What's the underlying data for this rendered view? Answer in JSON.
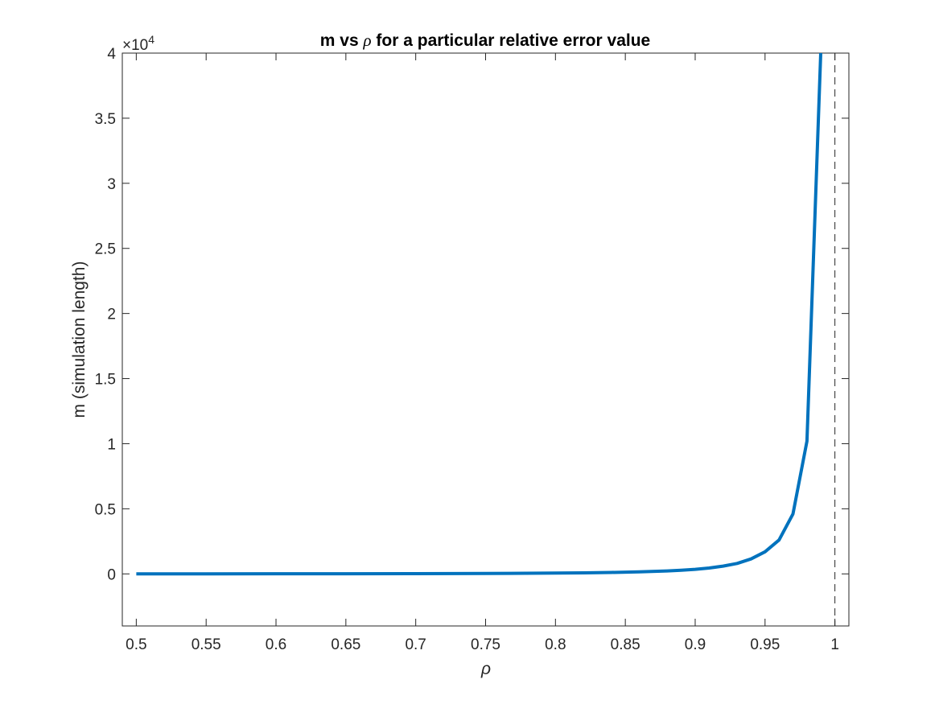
{
  "chart_data": {
    "type": "line",
    "title_prefix": "m vs ",
    "title_symbol": "ρ",
    "title_suffix": " for a particular relative error value",
    "xlabel": "ρ",
    "ylabel": "m (simulation length)",
    "y_exponent_base": "×10",
    "y_exponent_power": "4",
    "xlim": [
      0.49,
      1.01
    ],
    "ylim": [
      -0.4,
      4.0
    ],
    "x_ticks": [
      0.5,
      0.55,
      0.6,
      0.65,
      0.7,
      0.75,
      0.8,
      0.85,
      0.9,
      0.95,
      1
    ],
    "x_tick_labels": [
      "0.5",
      "0.55",
      "0.6",
      "0.65",
      "0.7",
      "0.75",
      "0.8",
      "0.85",
      "0.9",
      "0.95",
      "1"
    ],
    "y_ticks": [
      0,
      0.5,
      1,
      1.5,
      2,
      2.5,
      3,
      3.5,
      4
    ],
    "y_tick_labels": [
      "0",
      "0.5",
      "1",
      "1.5",
      "2",
      "2.5",
      "3",
      "3.5",
      "4"
    ],
    "reference_line": {
      "x": 1,
      "style": "dashed",
      "color": "#000000"
    },
    "series": [
      {
        "color": "#0072BD",
        "x": [
          0.5,
          0.55,
          0.6,
          0.65,
          0.7,
          0.75,
          0.8,
          0.82,
          0.84,
          0.86,
          0.88,
          0.89,
          0.9,
          0.91,
          0.92,
          0.93,
          0.94,
          0.95,
          0.96,
          0.97,
          0.98,
          0.99
        ],
        "y": [
          0.0003,
          0.0005,
          0.0008,
          0.0012,
          0.0018,
          0.003,
          0.006,
          0.008,
          0.011,
          0.016,
          0.023,
          0.028,
          0.035,
          0.045,
          0.06,
          0.08,
          0.115,
          0.17,
          0.26,
          0.46,
          1.02,
          4.05
        ]
      }
    ],
    "grid": false
  }
}
